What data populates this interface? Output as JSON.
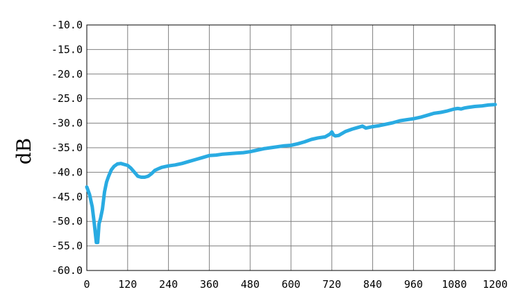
{
  "chart_data": {
    "type": "line",
    "title": "",
    "xlabel": "",
    "ylabel": "dB",
    "xlim": [
      0,
      1200
    ],
    "ylim": [
      -60,
      -10
    ],
    "x_ticks": [
      0,
      120,
      240,
      360,
      480,
      600,
      720,
      840,
      960,
      1080,
      1200
    ],
    "y_ticks": [
      -10,
      -15,
      -20,
      -25,
      -30,
      -35,
      -40,
      -45,
      -50,
      -55,
      -60
    ],
    "x_tick_labels": [
      "0",
      "120",
      "240",
      "360",
      "480",
      "600",
      "720",
      "840",
      "960",
      "1080",
      "1200"
    ],
    "y_tick_labels": [
      "-10.0",
      "-15.0",
      "-20.0",
      "-25.0",
      "-30.0",
      "-35.0",
      "-40.0",
      "-45.0",
      "-50.0",
      "-55.0",
      "-60.0"
    ],
    "grid": true,
    "legend": "none",
    "series": [
      {
        "color": "#29abe2",
        "x": [
          0,
          8,
          16,
          22,
          28,
          32,
          36,
          40,
          46,
          52,
          58,
          64,
          72,
          80,
          90,
          100,
          110,
          120,
          130,
          140,
          150,
          160,
          170,
          180,
          190,
          200,
          210,
          220,
          240,
          260,
          280,
          300,
          320,
          340,
          360,
          380,
          400,
          420,
          440,
          460,
          480,
          500,
          520,
          540,
          560,
          580,
          600,
          620,
          640,
          660,
          680,
          700,
          715,
          720,
          725,
          730,
          740,
          760,
          780,
          800,
          810,
          820,
          840,
          860,
          880,
          900,
          920,
          940,
          960,
          980,
          1000,
          1020,
          1040,
          1060,
          1080,
          1090,
          1100,
          1110,
          1120,
          1140,
          1160,
          1180,
          1200
        ],
        "y": [
          -43.0,
          -44.5,
          -47.0,
          -50.5,
          -54.3,
          -54.3,
          -50.5,
          -49.5,
          -47.5,
          -44.0,
          -42.0,
          -40.8,
          -39.5,
          -38.8,
          -38.3,
          -38.2,
          -38.4,
          -38.6,
          -39.2,
          -40.0,
          -40.8,
          -41.0,
          -41.0,
          -40.8,
          -40.3,
          -39.6,
          -39.3,
          -39.0,
          -38.7,
          -38.5,
          -38.2,
          -37.8,
          -37.4,
          -37.0,
          -36.6,
          -36.5,
          -36.3,
          -36.2,
          -36.1,
          -36.0,
          -35.8,
          -35.5,
          -35.2,
          -35.0,
          -34.8,
          -34.6,
          -34.5,
          -34.2,
          -33.8,
          -33.3,
          -33.0,
          -32.8,
          -32.2,
          -31.8,
          -32.4,
          -32.6,
          -32.5,
          -31.7,
          -31.2,
          -30.8,
          -30.6,
          -31.0,
          -30.7,
          -30.5,
          -30.2,
          -29.9,
          -29.5,
          -29.3,
          -29.1,
          -28.8,
          -28.4,
          -28.0,
          -27.8,
          -27.5,
          -27.1,
          -27.0,
          -27.1,
          -26.9,
          -26.8,
          -26.6,
          -26.5,
          -26.3,
          -26.2
        ]
      }
    ]
  }
}
